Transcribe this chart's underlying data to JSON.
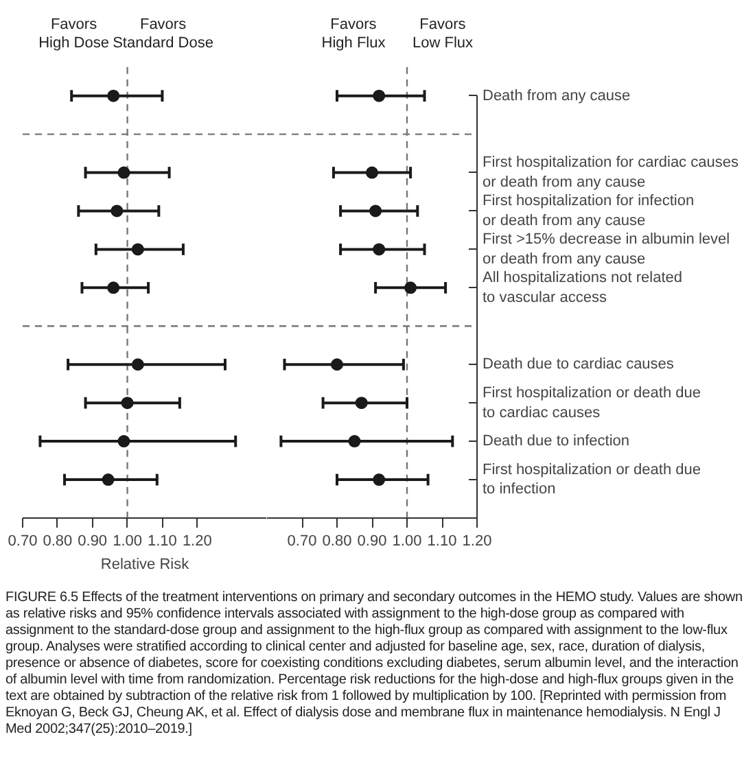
{
  "chart_data": [
    {
      "type": "scatter",
      "orientation": "horizontal",
      "tick_labels": "x",
      "marker": "circle",
      "xlabel": "Relative Risk",
      "annotations": [
        "Favors\nHigh Dose",
        "Favors\nStandard Dose",
        "FIGURE 6.5 Effects of the treatment interventions on primary and secondary outcomes in the HEMO study. Values are shown as relative risks and 95% confidence intervals associated with assignment to the high-dose group as compared with assignment to the standard-dose group and assignment to the high-flux group as compared with assignment to the low-flux group. Analyses were stratified according to clinical center and adjusted for baseline age, sex, race, duration of dialysis, presence or absence of diabetes, score for coexisting conditions excluding diabetes, serum albumin level, and the interaction of albumin level with time from randomization. Percentage risk reductions for the high-dose and high-flux groups given in the text are obtained by subtraction of the relative risk from 1 followed by multiplication by 100. [Reprinted with permission from Eknoyan G, Beck GJ, Cheung AK, et al. Effect of dialysis dose and membrane flux in maintenance hemodialysis. N Engl J Med 2002;347(25):2010–2019.]"
      ],
      "categories": [
        null,
        null,
        null,
        null,
        null,
        null,
        null,
        null,
        null,
        null,
        null
      ],
      "series": [
        {
          "color": "#1a1a1a",
          "values": [
            0.96,
            null,
            0.99,
            0.97,
            1.03,
            0.96,
            null,
            1.03,
            1.0,
            0.99,
            0.945
          ],
          "errors": [
            [
              0.84,
              1.1
            ],
            null,
            [
              0.88,
              1.12
            ],
            [
              0.86,
              1.09
            ],
            [
              0.91,
              1.16
            ],
            [
              0.87,
              1.06
            ],
            null,
            [
              0.83,
              1.28
            ],
            [
              0.88,
              1.15
            ],
            [
              0.75,
              1.31
            ],
            [
              0.82,
              1.085
            ]
          ]
        }
      ],
      "xlim": [
        0.7,
        1.4
      ],
      "xticks": [
        {
          "value": 0.7,
          "label": "0.70"
        },
        {
          "value": 0.8,
          "label": "0.80"
        },
        {
          "value": 0.9,
          "label": "0.90"
        },
        {
          "value": 1.0,
          "label": "1.00"
        },
        {
          "value": 1.1,
          "label": "1.10"
        },
        {
          "value": 1.2,
          "label": "1.20"
        }
      ],
      "ref_lines": [
        {
          "axis": "x",
          "value": 1.0,
          "color": "#777777",
          "line_style": "dashed"
        }
      ]
    },
    {
      "type": "scatter",
      "orientation": "horizontal",
      "marker": "circle",
      "annotations": [
        "Favors\nHigh Flux",
        "Favors\nLow Flux"
      ],
      "categories": [
        "Death from any cause",
        null,
        "First hospitalization for cardiac causes\nor death from any cause",
        "First hospitalization for infection\nor death from any cause",
        "First >15% decrease in albumin level\nor death from any cause",
        "All hospitalizations not related\nto vascular access",
        null,
        "Death due to cardiac causes",
        "First hospitalization or death due\nto cardiac causes",
        "Death due to infection",
        "First hospitalization or death due\nto infection"
      ],
      "series": [
        {
          "color": "#1a1a1a",
          "values": [
            0.92,
            null,
            0.9,
            0.91,
            0.92,
            1.01,
            null,
            0.8,
            0.87,
            0.85,
            0.92
          ],
          "errors": [
            [
              0.8,
              1.05
            ],
            null,
            [
              0.79,
              1.01
            ],
            [
              0.81,
              1.03
            ],
            [
              0.81,
              1.05
            ],
            [
              0.91,
              1.11
            ],
            null,
            [
              0.65,
              0.99
            ],
            [
              0.76,
              1.0
            ],
            [
              0.64,
              1.13
            ],
            [
              0.8,
              1.06
            ]
          ]
        }
      ],
      "xlim": [
        0.6,
        1.2
      ],
      "xticks": [
        {
          "value": 0.7,
          "label": "0.70"
        },
        {
          "value": 0.8,
          "label": "0.80"
        },
        {
          "value": 0.9,
          "label": "0.90"
        },
        {
          "value": 1.0,
          "label": "1.00"
        },
        {
          "value": 1.1,
          "label": "1.10"
        },
        {
          "value": 1.2,
          "label": "1.20"
        }
      ],
      "ref_lines": [
        {
          "axis": "x",
          "value": 1.0,
          "color": "#777777",
          "line_style": "dashed"
        }
      ]
    }
  ]
}
